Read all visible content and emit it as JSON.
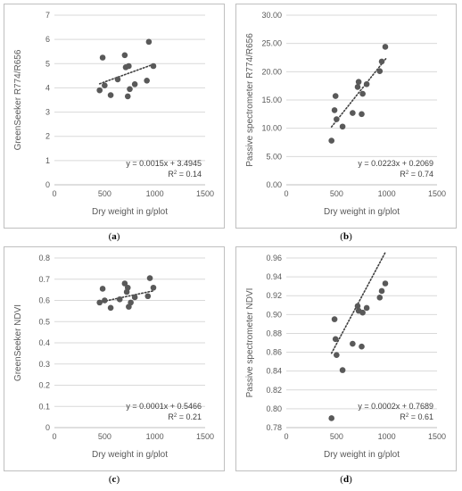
{
  "panels": [
    {
      "label_open": "(",
      "label_letter": "a",
      "label_close": ")"
    },
    {
      "label_open": "(",
      "label_letter": "b",
      "label_close": ")"
    },
    {
      "label_open": "(",
      "label_letter": "c",
      "label_close": ")"
    },
    {
      "label_open": "(",
      "label_letter": "d",
      "label_close": ")"
    }
  ],
  "chart_data": [
    {
      "type": "scatter",
      "title": "",
      "xlabel": "Dry weight in g/plot",
      "ylabel": "GreenSeeker R774/R656",
      "xlim": [
        0,
        1500
      ],
      "ylim": [
        0,
        7
      ],
      "xticks": [
        "0",
        "500",
        "1000",
        "1500"
      ],
      "yticks": [
        "0",
        "1",
        "2",
        "3",
        "4",
        "5",
        "6",
        "7"
      ],
      "trendline": {
        "slope": 0.0015,
        "intercept": 3.4945,
        "x_range": [
          450,
          990
        ],
        "style": "dotted"
      },
      "equation": "y = 0.0015x + 3.4945",
      "r2_prefix": "R",
      "r2_sup": "2",
      "r2_value": " = 0.14",
      "points": [
        {
          "x": 450,
          "y": 3.9
        },
        {
          "x": 480,
          "y": 5.25
        },
        {
          "x": 500,
          "y": 4.1
        },
        {
          "x": 560,
          "y": 3.7
        },
        {
          "x": 630,
          "y": 4.35
        },
        {
          "x": 700,
          "y": 5.35
        },
        {
          "x": 710,
          "y": 4.85
        },
        {
          "x": 730,
          "y": 3.65
        },
        {
          "x": 740,
          "y": 4.9
        },
        {
          "x": 750,
          "y": 3.95
        },
        {
          "x": 800,
          "y": 4.15
        },
        {
          "x": 920,
          "y": 4.3
        },
        {
          "x": 940,
          "y": 5.9
        },
        {
          "x": 985,
          "y": 4.9
        }
      ]
    },
    {
      "type": "scatter",
      "title": "",
      "xlabel": "Dry weight in g/plot",
      "ylabel": "Passive spectrometer R774/R656",
      "xlim": [
        0,
        1500
      ],
      "ylim": [
        0,
        30
      ],
      "xticks": [
        "0",
        "500",
        "1000",
        "1500"
      ],
      "yticks": [
        "0.00",
        "5.00",
        "10.00",
        "15.00",
        "20.00",
        "25.00",
        "30.00"
      ],
      "trendline": {
        "slope": 0.0223,
        "intercept": 0.2069,
        "x_range": [
          450,
          990
        ],
        "style": "dotted"
      },
      "equation": "y = 0.0223x + 0.2069",
      "r2_prefix": "R",
      "r2_sup": "2",
      "r2_value": " = 0.74",
      "points": [
        {
          "x": 450,
          "y": 7.8
        },
        {
          "x": 480,
          "y": 13.2
        },
        {
          "x": 490,
          "y": 15.7
        },
        {
          "x": 500,
          "y": 11.6
        },
        {
          "x": 560,
          "y": 10.3
        },
        {
          "x": 660,
          "y": 12.7
        },
        {
          "x": 710,
          "y": 17.3
        },
        {
          "x": 720,
          "y": 18.2
        },
        {
          "x": 750,
          "y": 12.5
        },
        {
          "x": 760,
          "y": 16.1
        },
        {
          "x": 800,
          "y": 17.8
        },
        {
          "x": 930,
          "y": 20.1
        },
        {
          "x": 950,
          "y": 21.8
        },
        {
          "x": 985,
          "y": 24.4
        }
      ]
    },
    {
      "type": "scatter",
      "title": "",
      "xlabel": "Dry weight in g/plot",
      "ylabel": "GreenSeeker NDVI",
      "xlim": [
        0,
        1500
      ],
      "ylim": [
        0,
        0.8
      ],
      "xticks": [
        "0",
        "500",
        "1000",
        "1500"
      ],
      "yticks": [
        "0",
        "0.1",
        "0.2",
        "0.3",
        "0.4",
        "0.5",
        "0.6",
        "0.7",
        "0.8"
      ],
      "trendline": {
        "slope": 0.0001,
        "intercept": 0.5466,
        "x_range": [
          450,
          990
        ],
        "style": "dotted"
      },
      "equation": "y = 0.0001x + 0.5466",
      "r2_prefix": "R",
      "r2_sup": "2",
      "r2_value": " = 0.21",
      "points": [
        {
          "x": 450,
          "y": 0.59
        },
        {
          "x": 480,
          "y": 0.655
        },
        {
          "x": 500,
          "y": 0.6
        },
        {
          "x": 560,
          "y": 0.565
        },
        {
          "x": 650,
          "y": 0.605
        },
        {
          "x": 700,
          "y": 0.68
        },
        {
          "x": 720,
          "y": 0.64
        },
        {
          "x": 730,
          "y": 0.66
        },
        {
          "x": 740,
          "y": 0.57
        },
        {
          "x": 760,
          "y": 0.59
        },
        {
          "x": 800,
          "y": 0.615
        },
        {
          "x": 930,
          "y": 0.62
        },
        {
          "x": 950,
          "y": 0.705
        },
        {
          "x": 985,
          "y": 0.66
        }
      ]
    },
    {
      "type": "scatter",
      "title": "",
      "xlabel": "Dry weight in g/plot",
      "ylabel": "Passive spectrometer NDVI",
      "xlim": [
        0,
        1500
      ],
      "ylim": [
        0.78,
        0.96
      ],
      "xticks": [
        "0",
        "500",
        "1000",
        "1500"
      ],
      "yticks": [
        "0.78",
        "0.80",
        "0.82",
        "0.84",
        "0.86",
        "0.88",
        "0.90",
        "0.92",
        "0.94",
        "0.96"
      ],
      "trendline": {
        "slope": 0.0002,
        "intercept": 0.7689,
        "x_range": [
          450,
          990
        ],
        "style": "dotted"
      },
      "equation": "y = 0.0002x + 0.7689",
      "r2_prefix": "R",
      "r2_sup": "2",
      "r2_value": " = 0.61",
      "points": [
        {
          "x": 450,
          "y": 0.79
        },
        {
          "x": 480,
          "y": 0.895
        },
        {
          "x": 490,
          "y": 0.874
        },
        {
          "x": 500,
          "y": 0.857
        },
        {
          "x": 560,
          "y": 0.841
        },
        {
          "x": 660,
          "y": 0.869
        },
        {
          "x": 710,
          "y": 0.909
        },
        {
          "x": 720,
          "y": 0.904
        },
        {
          "x": 750,
          "y": 0.866
        },
        {
          "x": 760,
          "y": 0.902
        },
        {
          "x": 800,
          "y": 0.907
        },
        {
          "x": 930,
          "y": 0.918
        },
        {
          "x": 950,
          "y": 0.925
        },
        {
          "x": 985,
          "y": 0.933
        }
      ]
    }
  ],
  "colors": {
    "point": "#595959",
    "trendline": "#404040",
    "gridline": "#d9d9d9",
    "axis": "#bfbfbf",
    "frame": "#bfbfbf"
  }
}
